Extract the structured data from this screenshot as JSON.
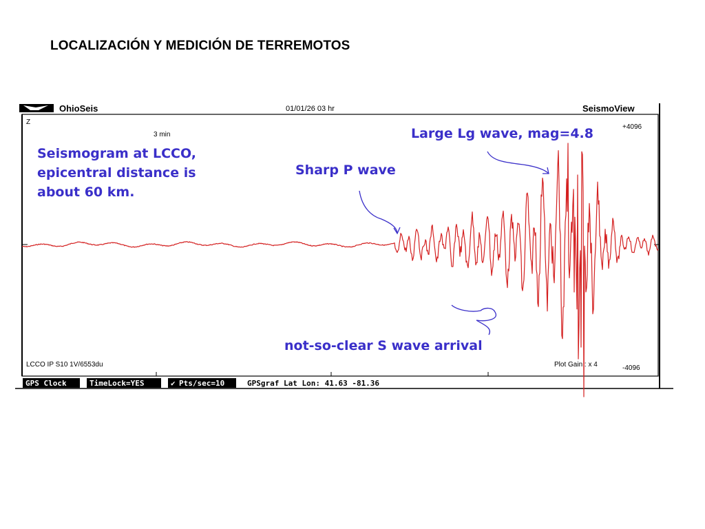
{
  "slide": {
    "title": "LOCALIZACIÓN Y MEDICIÓN DE TERREMOTOS"
  },
  "app": {
    "name": "OhioSeis",
    "datetime": "01/01/26  03 hr",
    "viewer": "SeismoView",
    "channel": "Z",
    "time_scale": "3 min",
    "y_max": "+4096",
    "y_min": "-4096",
    "station_info": "LCCO IP S10 1V/6553du",
    "plot_gain": "Plot Gain : x 4",
    "trace_color": "#d42020",
    "annotation_color": "#3a2fc9"
  },
  "annotations": {
    "seismogram_line1": "Seismogram at LCCO,",
    "seismogram_line2": "epicentral distance is",
    "seismogram_line3": "about 60 km.",
    "p_wave": "Sharp P wave",
    "lg_wave": "Large Lg wave, mag=4.8",
    "s_wave": "not-so-clear S wave arrival"
  },
  "status_bar": {
    "gps_clock": "GPS Clock",
    "timelock": "TimeLock=YES",
    "pts_sec": "Pts/sec=10",
    "gps_graf": "GPSgraf Lat Lon: 41.63   -81.36"
  }
}
